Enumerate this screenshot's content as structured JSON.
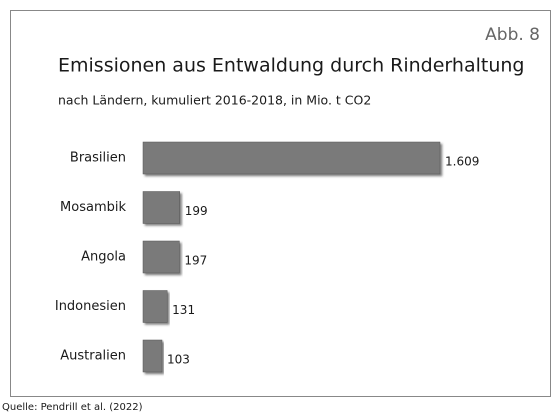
{
  "chart_data": {
    "type": "bar",
    "orientation": "horizontal",
    "figure_label": "Abb. 8",
    "title": "Emissionen aus Entwaldung durch Rinderhaltung",
    "subtitle": "nach Ländern, kumuliert 2016-2018, in Mio. t CO2",
    "categories": [
      "Brasilien",
      "Mosambik",
      "Angola",
      "Indonesien",
      "Australien"
    ],
    "values": [
      1609,
      199,
      197,
      131,
      103
    ],
    "value_labels": [
      "1.609",
      "199",
      "197",
      "131",
      "103"
    ],
    "color": "#7a7a7a",
    "source": "Quelle: Pendrill et al. (2022)"
  }
}
